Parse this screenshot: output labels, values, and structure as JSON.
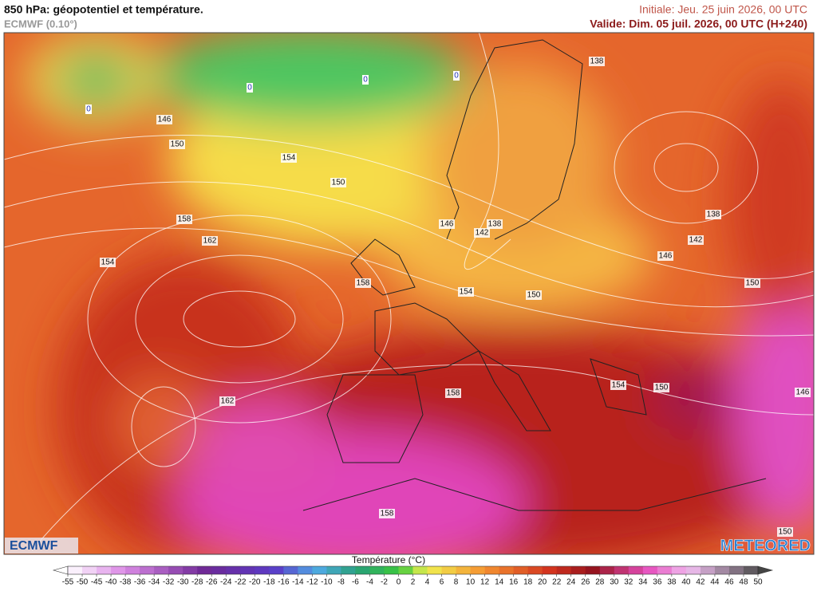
{
  "header": {
    "title": "850 hPa: géopotentiel et température.",
    "model": "ECMWF (0.10°)",
    "initial": "Initiale: Jeu. 25 juin 2026, 00 UTC",
    "valid": "Valide: Dim. 05 juil. 2026, 00 UTC (H+240)"
  },
  "map": {
    "contour_labels": [
      138,
      146,
      150,
      154,
      150,
      158,
      162,
      154,
      146,
      138,
      142,
      138,
      142,
      146,
      150,
      158,
      154,
      150,
      162,
      158,
      154,
      150,
      146,
      158,
      150
    ],
    "zero_labels": [
      0,
      0,
      0,
      0
    ]
  },
  "legend": {
    "title": "Température (°C)",
    "ticks": [
      -55,
      -50,
      -45,
      -40,
      -38,
      -36,
      -34,
      -32,
      -30,
      -28,
      -26,
      -24,
      -22,
      -20,
      -18,
      -16,
      -14,
      -12,
      -10,
      -8,
      -6,
      -4,
      -2,
      0,
      2,
      4,
      6,
      8,
      10,
      12,
      14,
      16,
      18,
      20,
      22,
      24,
      26,
      28,
      30,
      32,
      34,
      36,
      38,
      40,
      42,
      44,
      46,
      48,
      50
    ]
  },
  "logos": {
    "left": "ECMWF",
    "right": "METEORED"
  }
}
